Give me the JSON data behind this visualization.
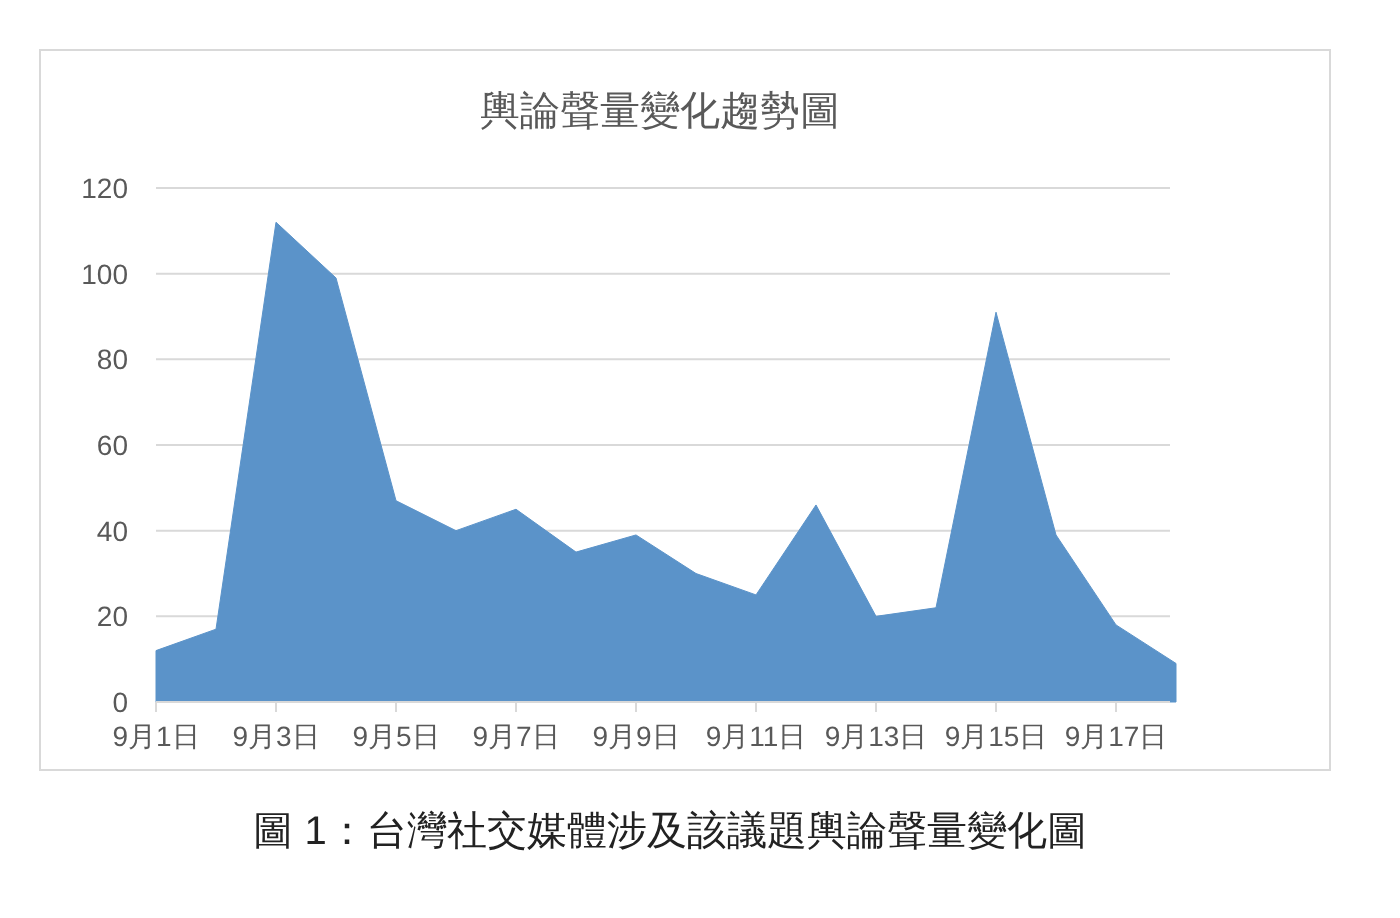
{
  "chart_data": {
    "type": "area",
    "title": "輿論聲量變化趨勢圖",
    "categories": [
      "9月1日",
      null,
      "9月3日",
      null,
      "9月5日",
      null,
      "9月7日",
      null,
      "9月9日",
      null,
      "9月11日",
      null,
      "9月13日",
      null,
      "9月15日",
      null,
      "9月17日",
      null
    ],
    "series": [
      {
        "color": "#5b93c9",
        "values": [
          12,
          17,
          112,
          99,
          47,
          40,
          45,
          35,
          39,
          30,
          25,
          46,
          20,
          22,
          91,
          39,
          18,
          9
        ]
      }
    ],
    "ylim": [
      0,
      120
    ],
    "yticks": [
      0,
      20,
      40,
      60,
      80,
      100,
      120
    ],
    "grid": "y",
    "annotations": [
      "圖 1：台灣社交媒體涉及該議題輿論聲量變化圖"
    ]
  }
}
